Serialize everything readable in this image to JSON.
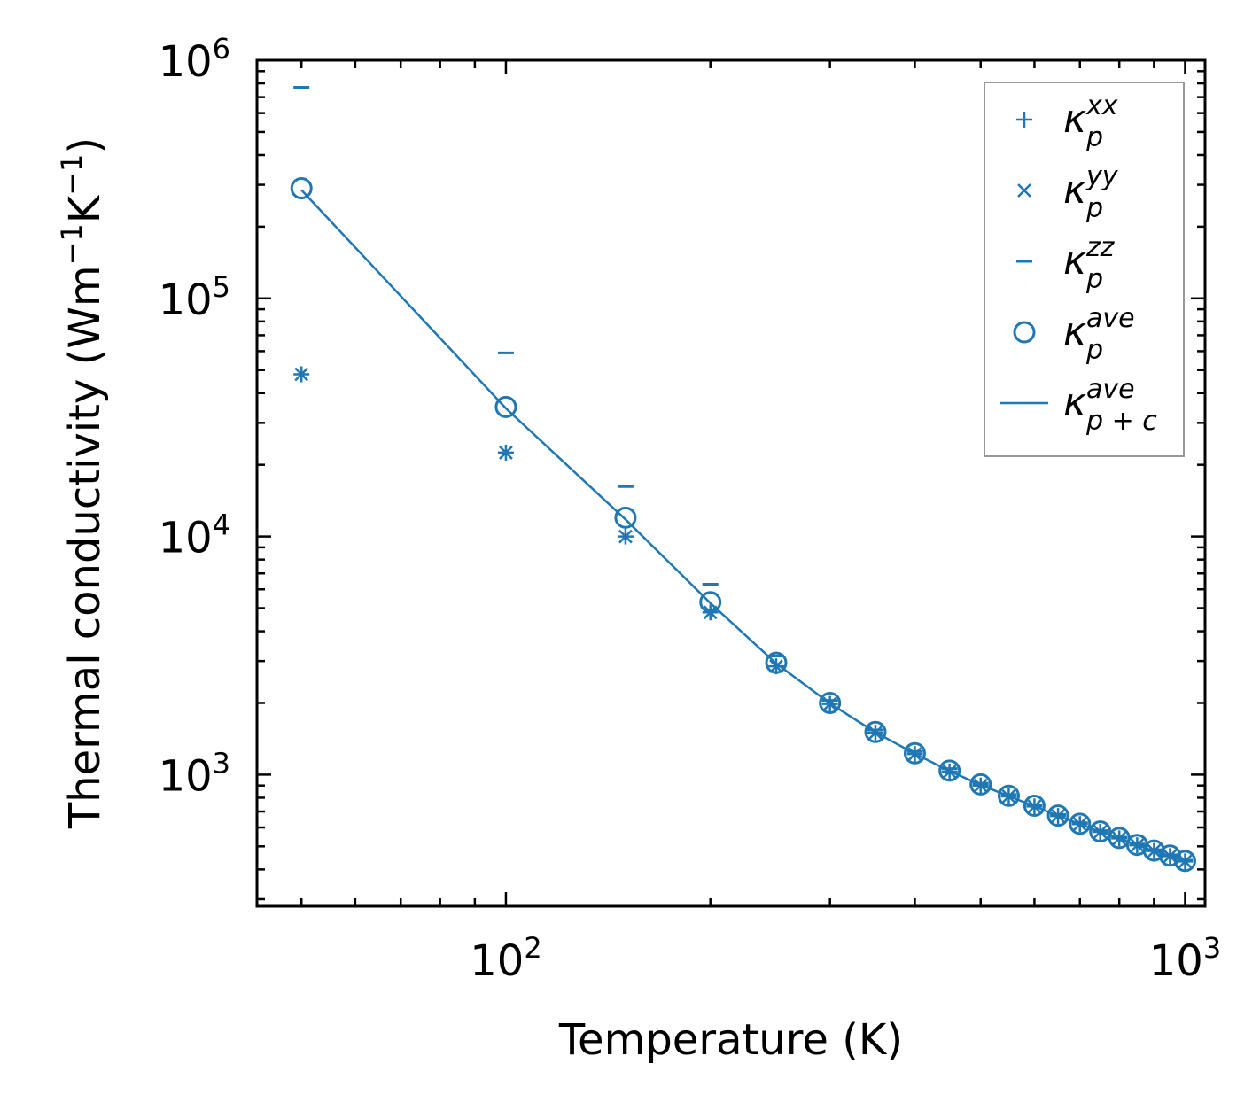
{
  "chart_data": {
    "type": "scatter",
    "xscale": "log",
    "yscale": "log",
    "xlabel": "Temperature (K)",
    "ylabel_parts": {
      "prefix": "Thermal conductivity (Wm",
      "exp1": "−1",
      "mid": "K",
      "exp2": "−1",
      "suffix": ")"
    },
    "xlim": [
      43,
      1070
    ],
    "ylim": [
      280,
      1000000
    ],
    "x_ticks": [
      {
        "value": 100,
        "base": "10",
        "exp": "2"
      },
      {
        "value": 1000,
        "base": "10",
        "exp": "3"
      }
    ],
    "y_ticks": [
      {
        "value": 1000,
        "base": "10",
        "exp": "3"
      },
      {
        "value": 10000,
        "base": "10",
        "exp": "4"
      },
      {
        "value": 100000,
        "base": "10",
        "exp": "5"
      },
      {
        "value": 1000000,
        "base": "10",
        "exp": "6"
      }
    ],
    "color": "#1f77b4",
    "x": [
      50,
      100,
      150,
      200,
      250,
      300,
      350,
      400,
      450,
      500,
      550,
      600,
      650,
      700,
      750,
      800,
      850,
      900,
      950,
      1000
    ],
    "series": [
      {
        "name": "kappa_p_xx",
        "marker": "plus",
        "values": [
          48000,
          22500,
          10000,
          4800,
          2850,
          1980,
          1500,
          1220,
          1030,
          900,
          810,
          735,
          670,
          620,
          575,
          540,
          505,
          478,
          455,
          432
        ]
      },
      {
        "name": "kappa_p_yy",
        "marker": "x",
        "values": [
          48000,
          22500,
          10000,
          4800,
          2850,
          1980,
          1500,
          1220,
          1030,
          900,
          810,
          735,
          670,
          620,
          575,
          540,
          505,
          478,
          455,
          432
        ]
      },
      {
        "name": "kappa_p_zz",
        "marker": "hline",
        "values": [
          770000,
          59000,
          16200,
          6300,
          3150,
          2050,
          1540,
          1250,
          1060,
          920,
          825,
          745,
          680,
          628,
          582,
          546,
          511,
          484,
          460,
          437
        ]
      },
      {
        "name": "kappa_p_ave",
        "marker": "circle",
        "values": [
          290000,
          35000,
          12000,
          5300,
          2950,
          2000,
          1510,
          1230,
          1040,
          910,
          815,
          740,
          673,
          622,
          577,
          542,
          507,
          480,
          457,
          434
        ]
      },
      {
        "name": "kappa_p+c_ave",
        "marker": "line",
        "values": [
          285000,
          34500,
          11800,
          5250,
          2930,
          1990,
          1505,
          1225,
          1035,
          905,
          812,
          737,
          671,
          620,
          575,
          540,
          505,
          478,
          455,
          432
        ]
      }
    ],
    "legend": {
      "position": "top-right",
      "entries": [
        {
          "symbol": "κ",
          "sub": "p",
          "sup": "xx"
        },
        {
          "symbol": "κ",
          "sub": "p",
          "sup": "yy"
        },
        {
          "symbol": "κ",
          "sub": "p",
          "sup": "zz"
        },
        {
          "symbol": "κ",
          "sub": "p",
          "sup": "ave"
        },
        {
          "symbol": "κ",
          "sub": "p + c",
          "sup": "ave"
        }
      ]
    }
  }
}
